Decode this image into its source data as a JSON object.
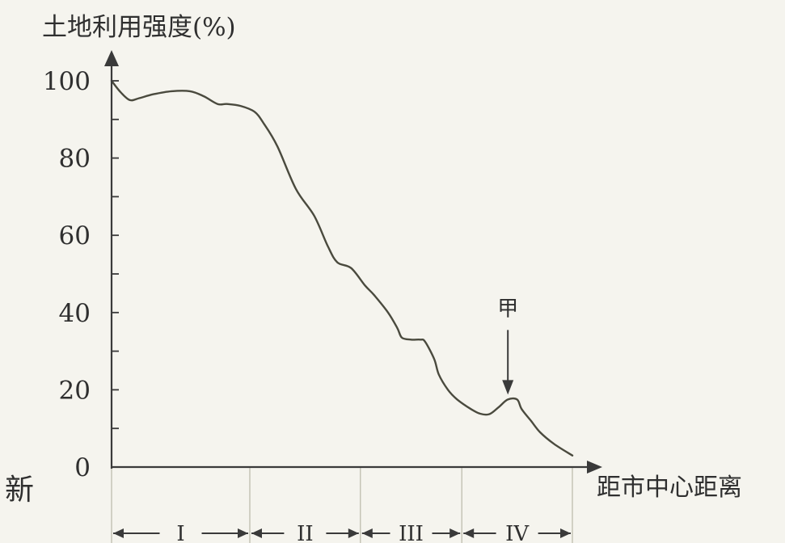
{
  "chart_data": {
    "type": "line",
    "ylabel": "土地利用强度(%)",
    "xlabel": "距市中心距离",
    "ylim": [
      0,
      100
    ],
    "yticks": [
      0,
      20,
      40,
      60,
      80,
      100
    ],
    "yticks_minor_step": 10,
    "xlim": [
      0,
      100
    ],
    "series": [
      {
        "x": [
          0,
          2,
          4,
          6,
          9,
          13,
          17,
          20,
          23,
          25,
          28,
          31,
          33,
          36,
          40,
          44,
          47,
          49,
          52,
          55,
          57,
          60,
          62,
          63,
          65,
          67,
          68,
          70,
          71,
          73,
          75,
          78,
          80,
          82,
          84,
          86,
          88,
          89,
          91,
          93,
          96,
          100
        ],
        "y": [
          100,
          97,
          95,
          95.5,
          96.5,
          97.3,
          97.3,
          96,
          94,
          94,
          93.5,
          92,
          89,
          83,
          72,
          65,
          57,
          53,
          51.5,
          47,
          44.5,
          40,
          36,
          33.5,
          33,
          33,
          32.5,
          28,
          24,
          20,
          17.5,
          15,
          13.8,
          13.7,
          15.5,
          17.5,
          17.5,
          15,
          12,
          9,
          6,
          3
        ]
      }
    ],
    "zones": [
      "I",
      "II",
      "III",
      "IV"
    ],
    "zone_bounds": [
      0,
      30,
      54,
      76,
      100
    ],
    "annotations": [
      {
        "text": "甲",
        "x": 86,
        "y": 17.5
      }
    ]
  },
  "watermark": {
    "text": "新"
  }
}
